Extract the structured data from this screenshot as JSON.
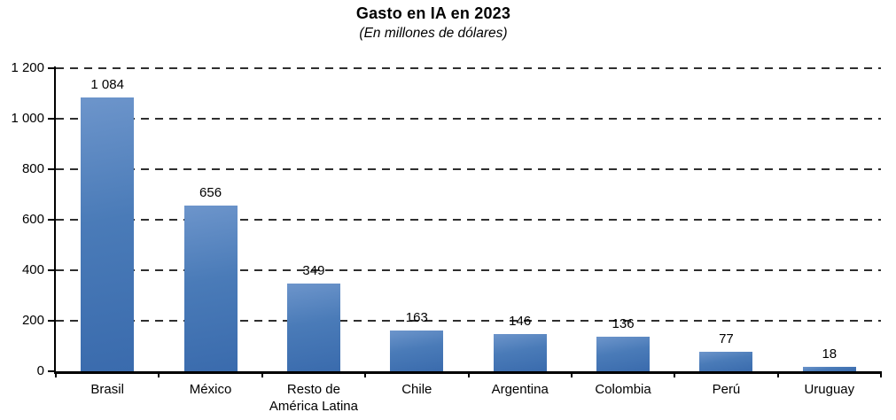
{
  "chart_data": {
    "type": "bar",
    "title": "Gasto en IA en 2023",
    "subtitle": "(En millones de dólares)",
    "categories": [
      "Brasil",
      "México",
      "Resto de\nAmérica Latina",
      "Chile",
      "Argentina",
      "Colombia",
      "Perú",
      "Uruguay"
    ],
    "values": [
      1084,
      656,
      349,
      163,
      146,
      136,
      77,
      18
    ],
    "value_labels": [
      "1 084",
      "656",
      "349",
      "163",
      "146",
      "136",
      "77",
      "18"
    ],
    "xlabel": "",
    "ylabel": "",
    "ylim": [
      0,
      1200
    ],
    "yticks": [
      0,
      200,
      400,
      600,
      800,
      1000,
      1200
    ],
    "ytick_labels": [
      "0",
      "200",
      "400",
      "600",
      "800",
      "1 000",
      "1 200"
    ],
    "grid": "horizontal-dashed",
    "legend": "none",
    "colors": {
      "bar_gradient_top": "#6D95CB",
      "bar_gradient_mid": "#4A7BB8",
      "bar_gradient_bottom": "#3A6BAD",
      "axis": "#000000",
      "gridline": "#2F2F2F",
      "text": "#000000",
      "background": "#FFFFFF"
    }
  }
}
